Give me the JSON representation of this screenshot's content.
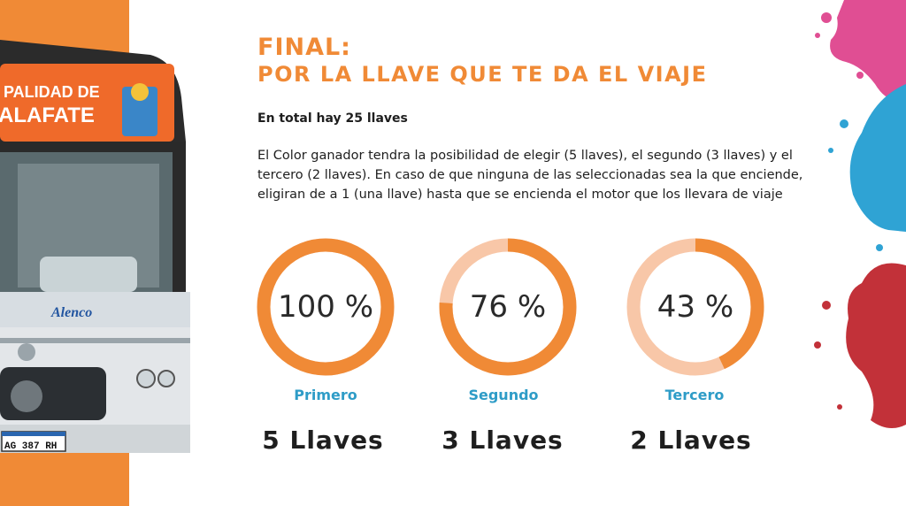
{
  "colors": {
    "accent": "#f08a36",
    "ring_track": "#f8c7a8",
    "label": "#2e9cc7",
    "text": "#1e1e1e"
  },
  "bus": {
    "sign_line1": "PALIDAD DE",
    "sign_line2": "ALAFATE",
    "side_logo": "Alenco",
    "plate": "AG 387 RH"
  },
  "header": {
    "title": "FINAL:",
    "subtitle": "POR LA LLAVE QUE TE DA EL VIAJE"
  },
  "intro": "En total hay 25 llaves",
  "description": "El Color ganador tendra la posibilidad de elegir (5 llaves), el segundo (3 llaves) y el tercero (2 llaves). En caso de que ninguna de las seleccionadas sea la que enciende, eligiran de a 1 (una llave) hasta que se encienda el motor que los llevara de viaje",
  "rings": [
    {
      "percent_label": "100 %",
      "fraction": 1.0,
      "place": "Primero",
      "keys": "5 Llaves"
    },
    {
      "percent_label": "76 %",
      "fraction": 0.76,
      "place": "Segundo",
      "keys": "3 Llaves"
    },
    {
      "percent_label": "43 %",
      "fraction": 0.43,
      "place": "Tercero",
      "keys": "2 Llaves"
    }
  ]
}
